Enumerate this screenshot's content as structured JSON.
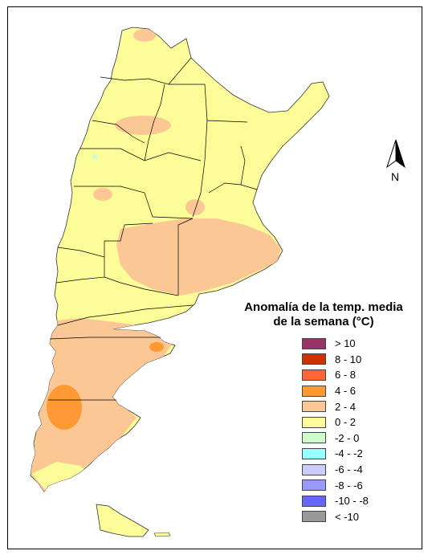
{
  "legend": {
    "title_line1": "Anomalía de la temp. media",
    "title_line2": "de la semana (°C)",
    "items": [
      {
        "label": "> 10",
        "color": "#993366"
      },
      {
        "label": "8 - 10",
        "color": "#cc3300"
      },
      {
        "label": "6 - 8",
        "color": "#ff6633"
      },
      {
        "label": "4 - 6",
        "color": "#ff9933"
      },
      {
        "label": "2 - 4",
        "color": "#fbc895"
      },
      {
        "label": "0 - 2",
        "color": "#fcfc99"
      },
      {
        "label": "-2 - 0",
        "color": "#ccffcc"
      },
      {
        "label": "-4 - -2",
        "color": "#99ffff"
      },
      {
        "label": "-6 - -4",
        "color": "#ccccff"
      },
      {
        "label": "-8 - -6",
        "color": "#9999ff"
      },
      {
        "label": "-10 - -8",
        "color": "#6666ff"
      },
      {
        "label": "< -10",
        "color": "#999999"
      }
    ]
  },
  "north_arrow": {
    "letter": "N",
    "icon": "north-arrow-icon"
  },
  "colors": {
    "base_fill": "#fcfc99",
    "anomaly_2_4": "#fbc895",
    "anomaly_4_6": "#ff9933",
    "anomaly_minus2_0": "#ccffcc",
    "border": "#000000"
  }
}
